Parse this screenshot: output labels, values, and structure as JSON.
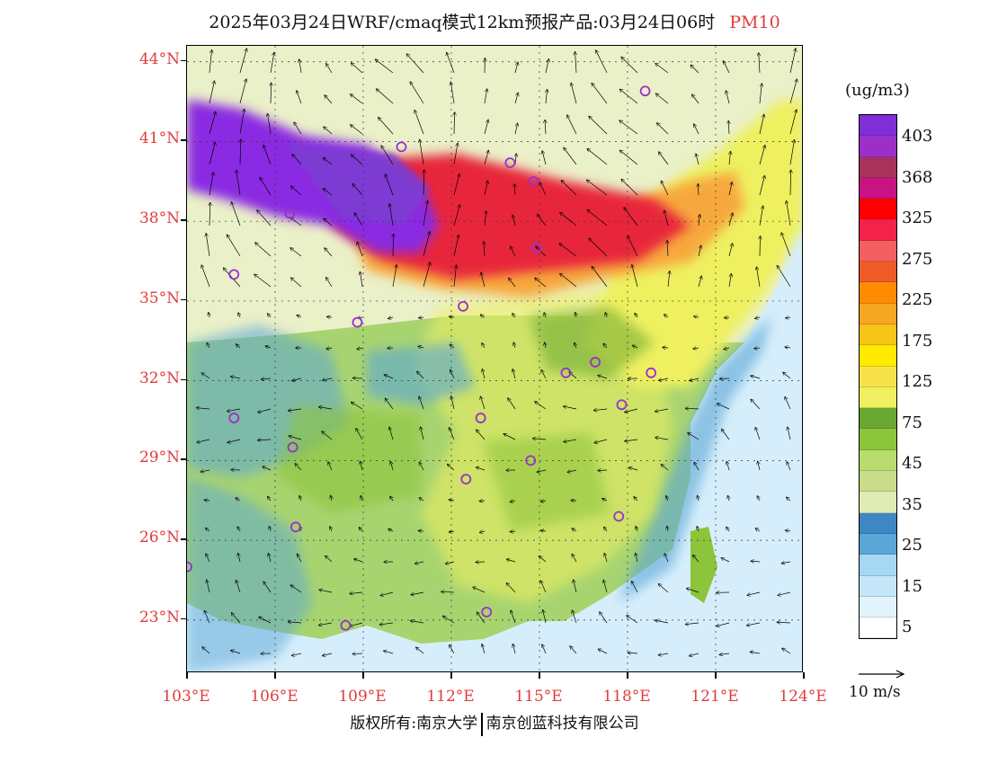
{
  "title": {
    "text": "2025年03月24日WRF/cmaq模式12km预报产品:03月24日06时",
    "variable": "PM10"
  },
  "map": {
    "lat_labels": [
      "44°N",
      "41°N",
      "38°N",
      "35°N",
      "32°N",
      "29°N",
      "26°N",
      "23°N"
    ],
    "lon_labels": [
      "103°E",
      "106°E",
      "109°E",
      "112°E",
      "115°E",
      "118°E",
      "121°E",
      "124°E"
    ],
    "lat_range": [
      21.0,
      44.6
    ],
    "lon_range": [
      103.0,
      124.0
    ],
    "colors": {
      "ocean": "#d6eefb",
      "coast_blue": "#5aa6d6",
      "land_low": "#9cd06b",
      "land_mid": "#e8ec5a",
      "highlight": "#ffd11a",
      "orange": "#f7a83c",
      "red": "#e8283a",
      "purple": "#8a2be2",
      "cities": "#9b30c8"
    },
    "cities": [
      {
        "lon": 118.6,
        "lat": 42.9
      },
      {
        "lon": 110.3,
        "lat": 40.8
      },
      {
        "lon": 114.0,
        "lat": 40.2
      },
      {
        "lon": 114.8,
        "lat": 39.5
      },
      {
        "lon": 106.5,
        "lat": 38.3
      },
      {
        "lon": 114.9,
        "lat": 37.0
      },
      {
        "lon": 104.6,
        "lat": 36.0
      },
      {
        "lon": 112.4,
        "lat": 34.8
      },
      {
        "lon": 108.8,
        "lat": 34.2
      },
      {
        "lon": 115.9,
        "lat": 32.3
      },
      {
        "lon": 116.9,
        "lat": 32.7
      },
      {
        "lon": 118.8,
        "lat": 32.3
      },
      {
        "lon": 117.8,
        "lat": 31.1
      },
      {
        "lon": 104.6,
        "lat": 30.6
      },
      {
        "lon": 113.0,
        "lat": 30.6
      },
      {
        "lon": 106.6,
        "lat": 29.5
      },
      {
        "lon": 114.7,
        "lat": 29.0
      },
      {
        "lon": 112.5,
        "lat": 28.3
      },
      {
        "lon": 117.7,
        "lat": 26.9
      },
      {
        "lon": 106.7,
        "lat": 26.5
      },
      {
        "lon": 103.0,
        "lat": 25.0
      },
      {
        "lon": 113.2,
        "lat": 23.3
      },
      {
        "lon": 108.4,
        "lat": 22.8
      }
    ]
  },
  "colorbar": {
    "unit": "(ug/m3)",
    "labels": [
      "403",
      "368",
      "325",
      "275",
      "225",
      "175",
      "125",
      "75",
      "45",
      "35",
      "25",
      "15",
      "5"
    ],
    "colors": [
      "#7e2fd8",
      "#9b30c8",
      "#a8335a",
      "#c81482",
      "#ff0000",
      "#f2224a",
      "#f46060",
      "#ee5a28",
      "#ff8c00",
      "#f5a623",
      "#f5c518",
      "#ffea00",
      "#f8e24a",
      "#eef060",
      "#6aa832",
      "#8cc43c",
      "#b9dc6e",
      "#c8dc8a",
      "#e0ecb4",
      "#3e86c4",
      "#5aa6d6",
      "#a5d8f2",
      "#c4e6f8",
      "#e2f3fb",
      "#ffffff"
    ]
  },
  "vector_legend": {
    "label": "10 m/s"
  },
  "copyright": {
    "part1": "版权所有:南京大学",
    "part2": "南京创蓝科技有限公司"
  }
}
